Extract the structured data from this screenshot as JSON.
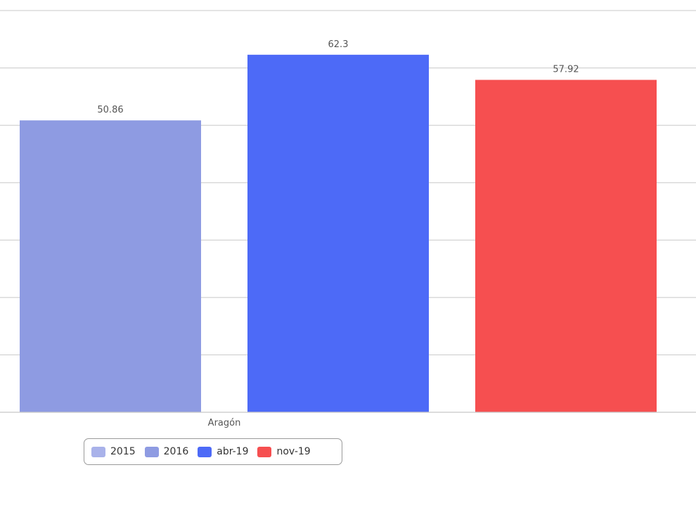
{
  "chart_data": {
    "type": "bar",
    "categories": [
      "Aragón"
    ],
    "series": [
      {
        "name": "2015",
        "values": [
          null
        ],
        "color": "#a9b2ea"
      },
      {
        "name": "2016",
        "values": [
          50.86
        ],
        "color": "#8e9be2"
      },
      {
        "name": "abr-19",
        "values": [
          62.3
        ],
        "color": "#4d6af7"
      },
      {
        "name": "nov-19",
        "values": [
          57.92
        ],
        "color": "#f64f50"
      }
    ],
    "data_labels": [
      "50.86",
      "62.3",
      "57.92"
    ],
    "ylim": [
      0,
      70
    ],
    "grid": true,
    "legend_position": "bottom-left"
  },
  "legend": {
    "items": [
      {
        "label": "2015",
        "color": "#a9b2ea"
      },
      {
        "label": "2016",
        "color": "#8e9be2"
      },
      {
        "label": "abr-19",
        "color": "#4d6af7"
      },
      {
        "label": "nov-19",
        "color": "#f64f50"
      }
    ]
  }
}
